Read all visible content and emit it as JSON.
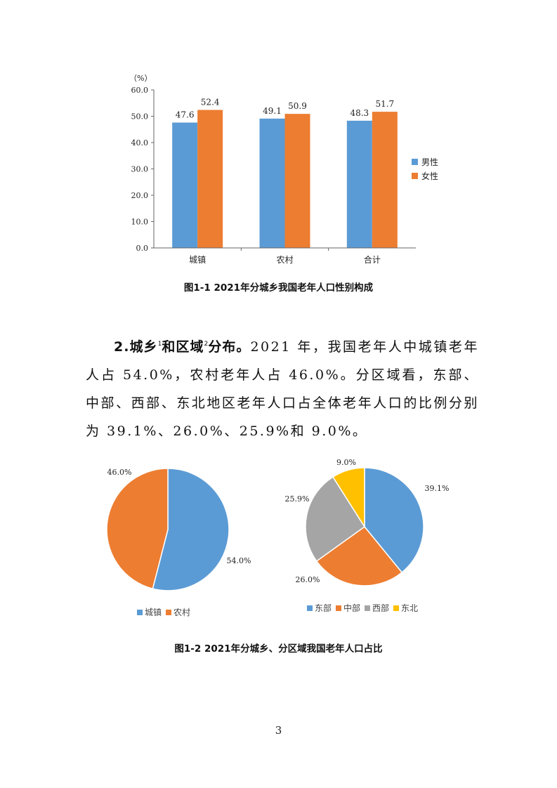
{
  "figure1": {
    "caption": "图1-1 2021年分城乡我国老年人口性别构成",
    "unit_label": "（%）",
    "legend": [
      "男性",
      "女性"
    ]
  },
  "paragraph": {
    "heading_prefix": "2.城乡",
    "note1": "1",
    "heading_mid": "和区域",
    "note2": "2",
    "heading_suffix": "分布。",
    "body": "2021 年，我国老年人中城镇老年人占 54.0%，农村老年人占 46.0%。分区域看，东部、中部、西部、东北地区老年人口占全体老年人口的比例分别为 39.1%、26.0%、25.9%和 9.0%。"
  },
  "figure2": {
    "caption": "图1-2 2021年分城乡、分区域我国老年人口占比",
    "urban_legend": [
      "城镇",
      "农村"
    ],
    "region_legend": [
      "东部",
      "中部",
      "西部",
      "东北"
    ]
  },
  "page_number": "3",
  "colors": {
    "blue": "#5b9bd5",
    "orange": "#ed7d31",
    "gray": "#a5a5a5",
    "yellow": "#ffc000"
  },
  "chart_data": [
    {
      "type": "bar",
      "categories": [
        "城镇",
        "农村",
        "合计"
      ],
      "series": [
        {
          "name": "男性",
          "values": [
            47.6,
            49.1,
            48.3
          ]
        },
        {
          "name": "女性",
          "values": [
            52.4,
            50.9,
            51.7
          ]
        }
      ],
      "ylabel": "（%）",
      "ylim": [
        0,
        60
      ],
      "yticks": [
        "0.0",
        "10.0",
        "20.0",
        "30.0",
        "40.0",
        "50.0",
        "60.0"
      ],
      "grid": false,
      "legend": "right"
    },
    {
      "type": "pie",
      "labels": [
        "城镇",
        "农村"
      ],
      "values": [
        54.0,
        46.0
      ],
      "value_labels": [
        "54.0%",
        "46.0%"
      ],
      "legend": "bottom"
    },
    {
      "type": "pie",
      "labels": [
        "东部",
        "中部",
        "西部",
        "东北"
      ],
      "values": [
        39.1,
        26.0,
        25.9,
        9.0
      ],
      "value_labels": [
        "39.1%",
        "26.0%",
        "25.9%",
        "9.0%"
      ],
      "legend": "bottom"
    }
  ]
}
